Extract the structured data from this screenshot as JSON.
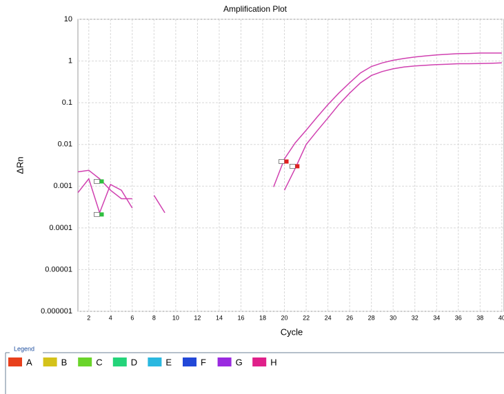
{
  "chart_data": {
    "type": "line",
    "title": "Amplification Plot",
    "x_label": "Cycle",
    "y_label": "ΔRn",
    "log_y": true,
    "grid": true,
    "x": [
      1,
      2,
      3,
      4,
      5,
      6,
      7,
      8,
      9,
      10,
      11,
      12,
      13,
      14,
      15,
      16,
      17,
      18,
      19,
      20,
      21,
      22,
      23,
      24,
      25,
      26,
      27,
      28,
      29,
      30,
      31,
      32,
      33,
      34,
      35,
      36,
      37,
      38,
      39,
      40
    ],
    "series": [
      {
        "color": "#d040b0",
        "values": [
          0.0022,
          0.0024,
          0.0015,
          0.0008,
          0.0005,
          0.0005,
          null,
          null,
          null,
          null,
          null,
          null,
          null,
          null,
          null,
          null,
          null,
          null,
          0.00096,
          0.0045,
          0.011,
          0.022,
          0.045,
          0.09,
          0.17,
          0.3,
          0.52,
          0.74,
          0.9,
          1.04,
          1.15,
          1.25,
          1.33,
          1.4,
          1.45,
          1.5,
          1.52,
          1.55,
          1.55,
          1.55
        ]
      },
      {
        "color": "#d040b0",
        "values": [
          0.0007,
          0.0015,
          0.00023,
          0.0011,
          0.0008,
          0.0003,
          null,
          0.0006,
          0.00023,
          null,
          null,
          null,
          null,
          null,
          null,
          null,
          null,
          null,
          null,
          0.0008,
          0.0027,
          0.01,
          0.021,
          0.043,
          0.09,
          0.17,
          0.3,
          0.45,
          0.56,
          0.65,
          0.72,
          0.76,
          0.79,
          0.82,
          0.84,
          0.86,
          0.86,
          0.87,
          0.88,
          0.9
        ]
      }
    ],
    "markers": [
      {
        "x": 20,
        "y": 0.0039,
        "color": "#e02020"
      },
      {
        "x": 21,
        "y": 0.003,
        "color": "#e02020"
      },
      {
        "x": 3,
        "y": 0.0013,
        "color": "#30c040"
      },
      {
        "x": 3,
        "y": 0.00021,
        "color": "#30c040"
      }
    ],
    "xlim": [
      1,
      40.2
    ],
    "xticks": [
      2,
      4,
      6,
      8,
      10,
      12,
      14,
      16,
      18,
      20,
      22,
      24,
      26,
      28,
      30,
      32,
      34,
      36,
      38,
      40
    ],
    "ylim": [
      1e-06,
      10
    ],
    "yticks": [
      10,
      1,
      0.1,
      0.01,
      0.001,
      0.0001,
      1e-05,
      1e-06
    ],
    "legend_title": "Legend",
    "legend": [
      {
        "label": "A",
        "color": "#e8401c"
      },
      {
        "label": "B",
        "color": "#d4c21a"
      },
      {
        "label": "C",
        "color": "#6ad42a"
      },
      {
        "label": "D",
        "color": "#24d47a"
      },
      {
        "label": "E",
        "color": "#2ab8e0"
      },
      {
        "label": "F",
        "color": "#2248d8"
      },
      {
        "label": "G",
        "color": "#9a2ae0"
      },
      {
        "label": "H",
        "color": "#e0208a"
      }
    ]
  }
}
